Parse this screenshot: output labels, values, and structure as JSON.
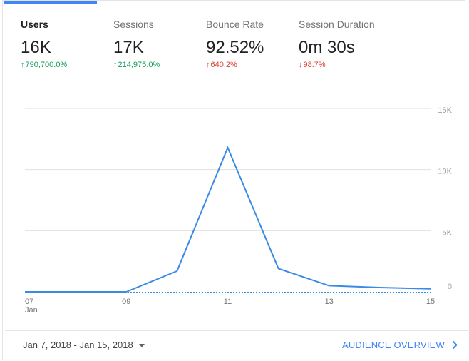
{
  "metrics": [
    {
      "label": "Users",
      "value": "16K",
      "change": "790,700.0%",
      "direction": "up",
      "sentiment": "good",
      "active": true
    },
    {
      "label": "Sessions",
      "value": "17K",
      "change": "214,975.0%",
      "direction": "up",
      "sentiment": "good",
      "active": false
    },
    {
      "label": "Bounce Rate",
      "value": "92.52%",
      "change": "640.2%",
      "direction": "up",
      "sentiment": "bad",
      "active": false
    },
    {
      "label": "Session Duration",
      "value": "0m 30s",
      "change": "98.7%",
      "direction": "down",
      "sentiment": "bad",
      "active": false
    }
  ],
  "colors": {
    "accent": "#4285f4",
    "series_line": "#3b8ae6",
    "positive": "#0f9d58",
    "negative": "#db4437",
    "grid": "#e0e0e0"
  },
  "chart_data": {
    "type": "line",
    "x": [
      "07",
      "08",
      "09",
      "10",
      "11",
      "12",
      "13",
      "14",
      "15"
    ],
    "x_tick_labels": [
      "07",
      "09",
      "11",
      "13",
      "15"
    ],
    "x_sublabel": "Jan",
    "series": [
      {
        "values": [
          0,
          0,
          0,
          1700,
          11800,
          1900,
          500,
          350,
          250
        ]
      }
    ],
    "y_ticks": [
      "0",
      "5K",
      "10K",
      "15K"
    ],
    "ylim": [
      0,
      15000
    ],
    "y_axis_side": "right",
    "grid": true,
    "zero_line_style": "dotted"
  },
  "footer": {
    "date_range": "Jan 7, 2018 - Jan 15, 2018",
    "link_label": "AUDIENCE OVERVIEW"
  },
  "icons": {
    "up_arrow": "arrow-up-icon",
    "down_arrow": "arrow-down-icon",
    "dropdown": "caret-down-icon",
    "chevron": "chevron-right-icon"
  }
}
